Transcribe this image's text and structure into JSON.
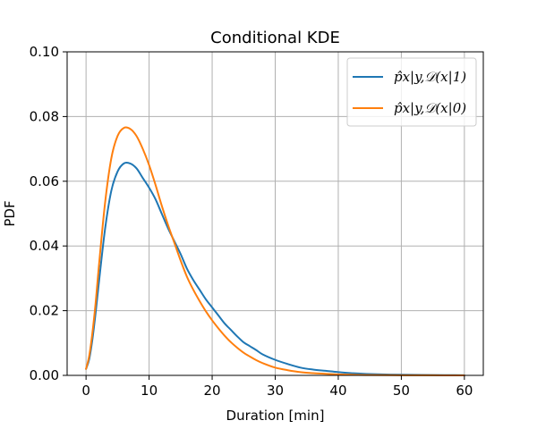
{
  "chart_data": {
    "type": "line",
    "title": "Conditional KDE",
    "xlabel": "Duration [min]",
    "ylabel": "PDF",
    "xlim": [
      -3.0,
      63.0
    ],
    "ylim": [
      0.0,
      0.1
    ],
    "x_ticks": [
      0,
      10,
      20,
      30,
      40,
      50,
      60
    ],
    "x_tick_labels": [
      "0",
      "10",
      "20",
      "30",
      "40",
      "50",
      "60"
    ],
    "y_ticks": [
      0.0,
      0.02,
      0.04,
      0.06,
      0.08,
      0.1
    ],
    "y_tick_labels": [
      "0.00",
      "0.02",
      "0.04",
      "0.06",
      "0.08",
      "0.10"
    ],
    "grid": true,
    "legend_position": "top-right",
    "colors": {
      "series_1": "#1f77b4",
      "series_0": "#ff7f0e",
      "grid": "#b0b0b0"
    },
    "series": [
      {
        "name": "p̂x|y,𝒟(x|1)",
        "x": [
          0,
          0.5,
          1,
          1.5,
          2,
          3,
          4,
          5,
          6,
          7,
          8,
          9,
          10,
          11,
          12,
          13,
          14,
          15,
          16,
          17,
          18,
          19,
          20,
          21,
          22,
          23,
          24,
          25,
          26,
          27,
          28,
          30,
          32,
          34,
          36,
          38,
          40,
          42,
          45,
          50,
          55,
          60
        ],
        "y": [
          0.002,
          0.005,
          0.011,
          0.019,
          0.028,
          0.045,
          0.057,
          0.063,
          0.0655,
          0.0655,
          0.064,
          0.061,
          0.058,
          0.0545,
          0.05,
          0.0455,
          0.0415,
          0.0375,
          0.033,
          0.0295,
          0.0265,
          0.0235,
          0.021,
          0.0185,
          0.016,
          0.014,
          0.012,
          0.0102,
          0.009,
          0.0078,
          0.0065,
          0.0048,
          0.0035,
          0.0024,
          0.0018,
          0.0014,
          0.001,
          0.0007,
          0.0004,
          0.0002,
          0.0001,
          5e-05
        ]
      },
      {
        "name": "p̂x|y,𝒟(x|0)",
        "x": [
          0,
          0.5,
          1,
          1.5,
          2,
          3,
          4,
          5,
          6,
          7,
          8,
          9,
          10,
          11,
          12,
          13,
          14,
          15,
          16,
          17,
          18,
          19,
          20,
          21,
          22,
          23,
          24,
          25,
          26,
          27,
          28,
          30,
          32,
          34,
          36,
          38,
          40,
          42,
          45,
          50,
          55,
          60
        ],
        "y": [
          0.002,
          0.006,
          0.013,
          0.022,
          0.033,
          0.053,
          0.067,
          0.074,
          0.0765,
          0.0762,
          0.074,
          0.07,
          0.065,
          0.059,
          0.0525,
          0.0465,
          0.041,
          0.0355,
          0.0305,
          0.0265,
          0.023,
          0.0198,
          0.017,
          0.0145,
          0.0122,
          0.0102,
          0.0085,
          0.007,
          0.0058,
          0.0047,
          0.0038,
          0.0024,
          0.0016,
          0.001,
          0.0007,
          0.0005,
          0.0003,
          0.0002,
          0.0001,
          5e-05,
          2e-05,
          1e-05
        ]
      }
    ]
  }
}
